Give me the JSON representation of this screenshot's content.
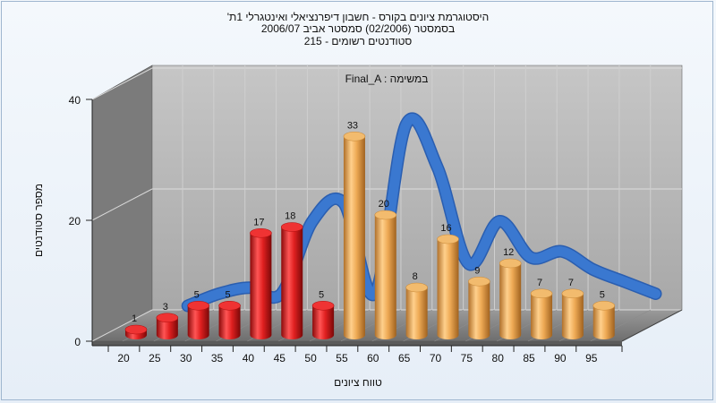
{
  "title_lines": [
    "היסטוגרמת ציונים בקורס - חשבון דיפרנציאלי ואינטגרלי 1ת'",
    "בסמסטר  (02/2006)  סמסטר אביב 2006/07",
    "סטודנטים רשומים - 215"
  ],
  "chart_data": {
    "type": "bar",
    "subtitle": "Final_A : במשימה",
    "xlabel": "טווח ציונים",
    "ylabel": "מספר סטודנטים",
    "categories": [
      "20",
      "25",
      "30",
      "35",
      "40",
      "45",
      "50",
      "55",
      "60",
      "65",
      "70",
      "75",
      "80",
      "85",
      "90",
      "95"
    ],
    "values": [
      1,
      3,
      5,
      5,
      17,
      18,
      5,
      33,
      20,
      8,
      16,
      9,
      12,
      7,
      7,
      5
    ],
    "yticks": [
      0,
      20,
      40
    ],
    "ylim": [
      0,
      40
    ],
    "grid": true,
    "colors": {
      "below_pass": "#dd1f1f",
      "pass": "#eeaa55",
      "curve": "#3a78d0",
      "wall": "#b5b5b5",
      "side_wall": "#7a7a7a"
    },
    "bar_color_split_index": 7,
    "curve": {
      "x": [
        25,
        30,
        35,
        40,
        45,
        50,
        55,
        60,
        65,
        70,
        75,
        80,
        85,
        90,
        95,
        100
      ],
      "y": [
        3,
        5,
        6,
        5,
        17,
        20,
        5,
        33,
        26,
        10,
        17,
        11,
        12,
        9,
        7,
        5
      ]
    }
  }
}
